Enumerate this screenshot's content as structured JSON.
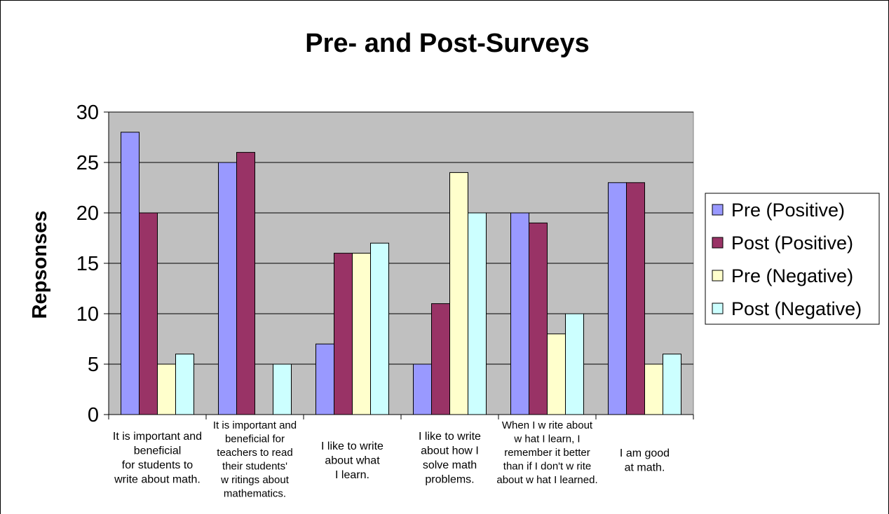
{
  "chart_data": {
    "type": "bar",
    "title": "Pre- and Post-Surveys",
    "xlabel": "",
    "ylabel": "Repsonses",
    "ylim": [
      0,
      30
    ],
    "yticks": [
      0,
      5,
      10,
      15,
      20,
      25,
      30
    ],
    "grid": true,
    "legend_position": "right",
    "categories": [
      [
        "It is important and",
        "beneficial",
        "for students to",
        "write about math."
      ],
      [
        "It is important and",
        "beneficial for",
        "teachers to read",
        "their students'",
        "w ritings about",
        "mathematics."
      ],
      [
        "I like to write",
        "about what",
        "I learn."
      ],
      [
        "I like to write",
        "about how I",
        "solve math",
        "problems."
      ],
      [
        "When I w rite about",
        "w hat I learn, I",
        "remember it better",
        "than if I don't w rite",
        "about w hat I learned."
      ],
      [
        "I am good",
        "at math."
      ]
    ],
    "series": [
      {
        "name": "Pre (Positive)",
        "color": "#9999ff",
        "values": [
          28,
          25,
          7,
          5,
          20,
          23
        ]
      },
      {
        "name": "Post (Positive)",
        "color": "#993366",
        "values": [
          20,
          26,
          16,
          11,
          19,
          23
        ]
      },
      {
        "name": "Pre (Negative)",
        "color": "#ffffcc",
        "values": [
          5,
          0,
          16,
          24,
          8,
          5
        ]
      },
      {
        "name": "Post (Negative)",
        "color": "#ccffff",
        "values": [
          6,
          5,
          17,
          20,
          10,
          6
        ]
      }
    ],
    "plot_background": "#c0c0c0"
  }
}
